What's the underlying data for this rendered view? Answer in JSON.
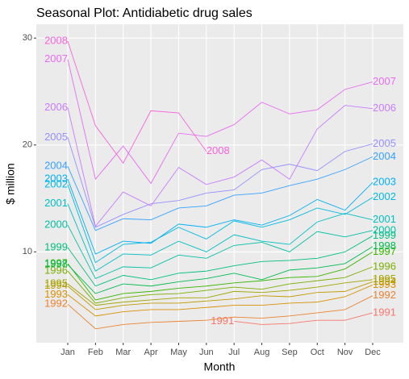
{
  "chart_data": {
    "type": "line",
    "title": "Seasonal Plot: Antidiabetic drug sales",
    "x_label": "Month",
    "y_label": "$ million",
    "categories": [
      "Jan",
      "Feb",
      "Mar",
      "Apr",
      "May",
      "Jun",
      "Jul",
      "Aug",
      "Sep",
      "Oct",
      "Nov",
      "Dec"
    ],
    "ylim": [
      1.5,
      31.3
    ],
    "yticks": [
      10,
      20,
      30
    ],
    "grid": true,
    "series": [
      {
        "name": "1991",
        "color": "#F8766D",
        "values": [
          null,
          null,
          null,
          null,
          null,
          null,
          3.5,
          3.2,
          3.3,
          3.6,
          3.6,
          4.3
        ]
      },
      {
        "name": "1992",
        "color": "#EA8331",
        "values": [
          5.1,
          2.8,
          3.2,
          3.4,
          3.5,
          3.6,
          3.9,
          3.8,
          4.0,
          4.3,
          4.6,
          5.9
        ]
      },
      {
        "name": "1993",
        "color": "#D89000",
        "values": [
          6.0,
          4.0,
          4.4,
          4.6,
          4.6,
          4.8,
          5.0,
          5.0,
          5.2,
          5.3,
          5.8,
          6.9
        ]
      },
      {
        "name": "1994",
        "color": "#C09B00",
        "values": [
          6.8,
          4.6,
          5.0,
          5.2,
          5.2,
          5.4,
          5.6,
          5.9,
          5.8,
          6.2,
          6.3,
          7.2
        ]
      },
      {
        "name": "1995",
        "color": "#A3A500",
        "values": [
          7.0,
          5.0,
          5.3,
          5.5,
          5.7,
          5.7,
          6.3,
          6.2,
          6.4,
          6.7,
          7.1,
          7.4
        ]
      },
      {
        "name": "1996",
        "color": "#7CAE00",
        "values": [
          8.2,
          5.2,
          5.7,
          6.0,
          6.1,
          6.4,
          6.7,
          6.5,
          7.0,
          7.3,
          7.6,
          8.6
        ]
      },
      {
        "name": "1997",
        "color": "#39B600",
        "values": [
          8.9,
          5.5,
          6.1,
          6.3,
          6.6,
          6.8,
          7.1,
          7.3,
          7.6,
          7.7,
          8.4,
          10.0
        ]
      },
      {
        "name": "1998",
        "color": "#00BB4E",
        "values": [
          8.8,
          6.1,
          7.0,
          6.8,
          7.2,
          7.5,
          8.0,
          7.4,
          8.3,
          8.5,
          8.9,
          10.5
        ]
      },
      {
        "name": "1999",
        "color": "#00BF7D",
        "values": [
          10.4,
          6.8,
          7.8,
          7.4,
          8.0,
          8.2,
          8.7,
          9.1,
          9.2,
          9.4,
          10.0,
          11.5
        ]
      },
      {
        "name": "2000",
        "color": "#00C1A3",
        "values": [
          12.5,
          7.5,
          8.6,
          8.5,
          9.7,
          9.4,
          10.6,
          10.9,
          10.0,
          11.9,
          11.4,
          12.0
        ]
      },
      {
        "name": "2001",
        "color": "#00BFC4",
        "values": [
          14.5,
          8.2,
          9.8,
          9.7,
          11.0,
          10.0,
          11.6,
          11.0,
          10.7,
          12.8,
          13.6,
          13.0
        ]
      },
      {
        "name": "2002",
        "color": "#00BAE0",
        "values": [
          16.3,
          9.0,
          10.7,
          10.9,
          12.3,
          11.2,
          12.9,
          12.3,
          13.0,
          14.1,
          13.5,
          15.1
        ]
      },
      {
        "name": "2003",
        "color": "#00B0F6",
        "values": [
          16.8,
          9.8,
          11.0,
          10.8,
          12.6,
          12.3,
          13.0,
          12.5,
          13.4,
          14.9,
          13.9,
          16.5
        ]
      },
      {
        "name": "2004",
        "color": "#35A2FF",
        "values": [
          18.0,
          12.0,
          13.1,
          13.0,
          14.1,
          14.3,
          15.3,
          15.5,
          16.2,
          16.8,
          17.7,
          18.9
        ]
      },
      {
        "name": "2005",
        "color": "#9590FF",
        "values": [
          20.7,
          12.3,
          13.5,
          14.5,
          14.8,
          15.5,
          15.8,
          17.7,
          18.2,
          17.6,
          19.4,
          20.1
        ]
      },
      {
        "name": "2006",
        "color": "#C77CFF",
        "values": [
          23.5,
          12.4,
          15.6,
          14.3,
          17.9,
          16.3,
          17.0,
          18.6,
          16.8,
          21.5,
          23.7,
          23.4
        ]
      },
      {
        "name": "2007",
        "color": "#E76BF3",
        "values": [
          28.0,
          16.8,
          19.9,
          16.4,
          21.1,
          20.8,
          21.9,
          24.0,
          22.9,
          23.3,
          25.2,
          25.9
        ]
      },
      {
        "name": "2008",
        "color": "#FA62DB",
        "values": [
          29.7,
          21.8,
          18.3,
          23.2,
          23.0,
          19.4,
          null,
          null,
          null,
          null,
          null,
          null
        ]
      }
    ]
  }
}
